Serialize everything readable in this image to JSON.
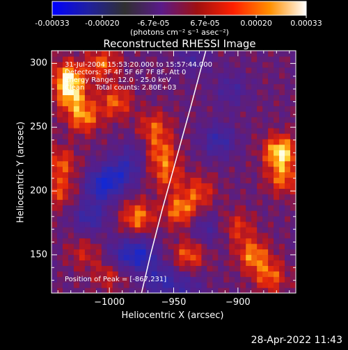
{
  "colorbar": {
    "tick_labels": [
      "-0.00033",
      "-0.00020",
      "-6.7e-05",
      "6.7e-05",
      "0.00020",
      "0.00033"
    ],
    "tick_values": [
      -0.00033,
      -0.0002,
      -6.7e-05,
      6.7e-05,
      0.0002,
      0.00033
    ],
    "range": [
      -0.00033,
      0.00033
    ],
    "unit_label": "(photons cm⁻² s⁻¹ asec⁻²)",
    "colors": [
      "#0000ff",
      "#2020a0",
      "#303030",
      "#5a1a8a",
      "#a01010",
      "#ff2000",
      "#ff9000",
      "#ffffff"
    ]
  },
  "annotations": {
    "time": "31-Jul-2004 15:53:20.000 to 15:57:44.000",
    "detectors": "Detectors: 3F 4F 5F 6F 7F 8F, Att 0",
    "energy": "Energy Range: 12.0 - 25.0 keV",
    "algorithm": "Clean     Total counts: 2.80E+03",
    "peak": "Position of Peak = [-867,231]"
  },
  "footer": {
    "date": "28-Apr-2022 11:43"
  },
  "chart_data": {
    "type": "heatmap",
    "title": "Reconstructed RHESSI Image",
    "xlabel": "Heliocentric X (arcsec)",
    "ylabel": "Heliocentric Y (arcsec)",
    "xlim": [
      -1045,
      -855
    ],
    "ylim": [
      120,
      310
    ],
    "x_ticks": [
      -1000,
      -950,
      -900
    ],
    "y_ticks": [
      150,
      200,
      250,
      300
    ],
    "limb": [
      [
        -975,
        120
      ],
      [
        -968,
        150
      ],
      [
        -959,
        185
      ],
      [
        -948,
        225
      ],
      [
        -937,
        265
      ],
      [
        -925,
        310
      ]
    ],
    "peak_position": [
      -867,
      231
    ],
    "blobs": [
      {
        "x": -1032,
        "y": 290,
        "v": 0.8
      },
      {
        "x": -1030,
        "y": 275,
        "v": 0.7
      },
      {
        "x": -1020,
        "y": 258,
        "v": 0.7
      },
      {
        "x": -1005,
        "y": 300,
        "v": 0.6
      },
      {
        "x": -995,
        "y": 270,
        "v": 0.6
      },
      {
        "x": -965,
        "y": 250,
        "v": 0.55
      },
      {
        "x": -960,
        "y": 230,
        "v": 0.6
      },
      {
        "x": -955,
        "y": 212,
        "v": 0.5
      },
      {
        "x": -945,
        "y": 185,
        "v": 0.7
      },
      {
        "x": -938,
        "y": 150,
        "v": 0.6
      },
      {
        "x": -930,
        "y": 200,
        "v": 0.5
      },
      {
        "x": -900,
        "y": 172,
        "v": 0.45
      },
      {
        "x": -888,
        "y": 150,
        "v": 0.7
      },
      {
        "x": -875,
        "y": 133,
        "v": 0.6
      },
      {
        "x": -867,
        "y": 231,
        "v": 1.0
      },
      {
        "x": -865,
        "y": 210,
        "v": 0.6
      },
      {
        "x": -978,
        "y": 180,
        "v": 0.7
      },
      {
        "x": -1038,
        "y": 222,
        "v": 0.55
      },
      {
        "x": -1040,
        "y": 200,
        "v": 0.5
      },
      {
        "x": -1020,
        "y": 152,
        "v": 0.35
      },
      {
        "x": -1000,
        "y": 135,
        "v": 0.4
      },
      {
        "x": -1005,
        "y": 205,
        "v": -0.9
      },
      {
        "x": -990,
        "y": 215,
        "v": -0.6
      },
      {
        "x": -1015,
        "y": 180,
        "v": -0.6
      },
      {
        "x": -975,
        "y": 150,
        "v": -0.7
      },
      {
        "x": -990,
        "y": 150,
        "v": -0.5
      },
      {
        "x": -925,
        "y": 170,
        "v": -0.4
      },
      {
        "x": -915,
        "y": 240,
        "v": -0.6
      },
      {
        "x": -905,
        "y": 280,
        "v": -0.4
      },
      {
        "x": -935,
        "y": 305,
        "v": -0.4
      },
      {
        "x": -980,
        "y": 230,
        "v": -0.3
      },
      {
        "x": -960,
        "y": 130,
        "v": -0.6
      },
      {
        "x": -940,
        "y": 125,
        "v": -0.4
      }
    ]
  }
}
